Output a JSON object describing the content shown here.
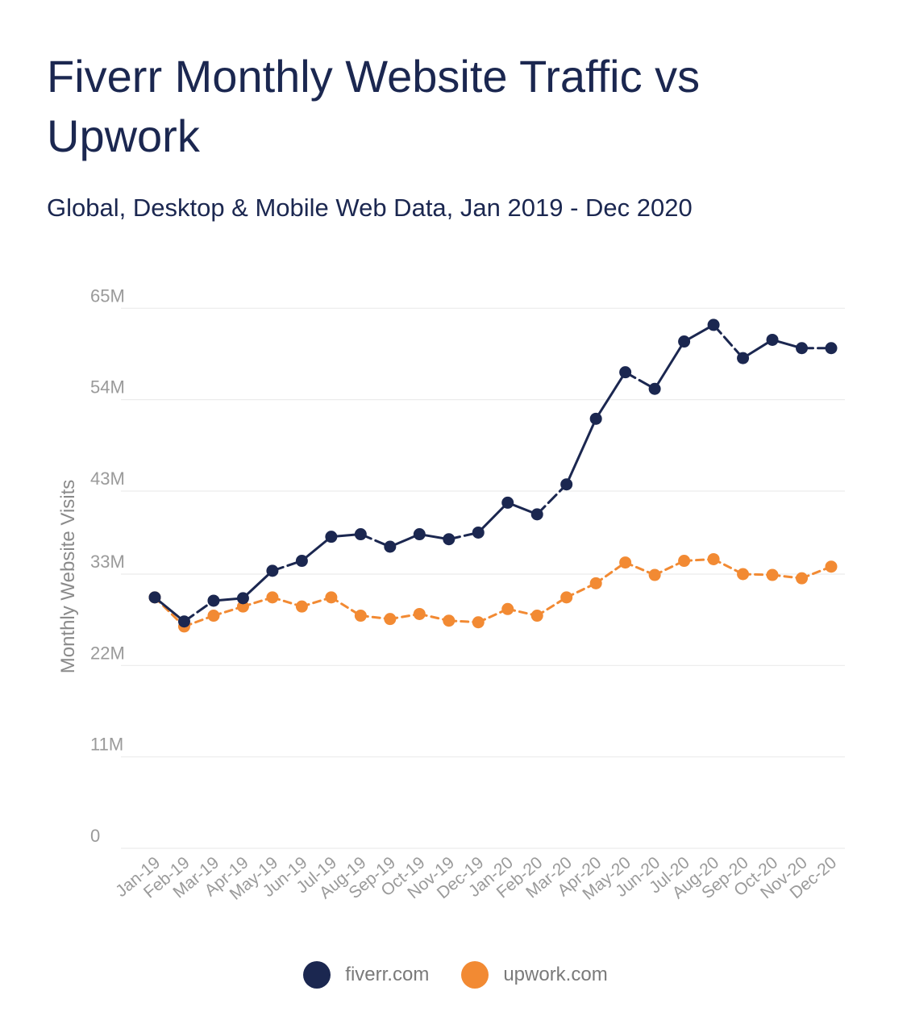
{
  "chart_data": {
    "type": "line",
    "title": "Fiverr Monthly Website Traffic vs Upwork",
    "subtitle": "Global, Desktop & Mobile Web Data, Jan 2019 -  Dec 2020",
    "xlabel": "",
    "ylabel": "Monthly Website Visits",
    "ylim": [
      0,
      66
    ],
    "yticks": [
      0,
      11,
      22,
      33,
      43,
      54,
      65
    ],
    "ytick_labels": [
      "0",
      "11M",
      "22M",
      "33M",
      "43M",
      "54M",
      "65M"
    ],
    "grid": true,
    "legend_position": "bottom-center",
    "categories": [
      "Jan-19",
      "Feb-19",
      "Mar-19",
      "Apr-19",
      "May-19",
      "Jun-19",
      "Jul-19",
      "Aug-19",
      "Sep-19",
      "Oct-19",
      "Nov-19",
      "Dec-19",
      "Jan-20",
      "Feb-20",
      "Mar-20",
      "Apr-20",
      "May-20",
      "Jun-20",
      "Jul-20",
      "Aug-20",
      "Sep-20",
      "Oct-20",
      "Nov-20",
      "Dec-20"
    ],
    "series": [
      {
        "name": "fiverr.com",
        "color": "#1b2750",
        "values": [
          30.2,
          27.3,
          29.8,
          30.1,
          33.4,
          34.6,
          37.5,
          37.8,
          36.3,
          37.8,
          37.2,
          38.0,
          41.6,
          40.2,
          43.8,
          51.7,
          57.3,
          55.3,
          61.0,
          63.0,
          59.0,
          61.2,
          60.2,
          60.2
        ],
        "line_style": "solid"
      },
      {
        "name": "upwork.com",
        "color": "#f28a33",
        "values": [
          30.2,
          26.7,
          28.0,
          29.1,
          30.2,
          29.1,
          30.2,
          28.0,
          27.6,
          28.2,
          27.4,
          27.2,
          28.8,
          28.0,
          30.2,
          31.9,
          34.4,
          32.9,
          34.6,
          34.8,
          33.0,
          32.9,
          32.5,
          33.9
        ],
        "line_style": "dashed"
      }
    ]
  }
}
